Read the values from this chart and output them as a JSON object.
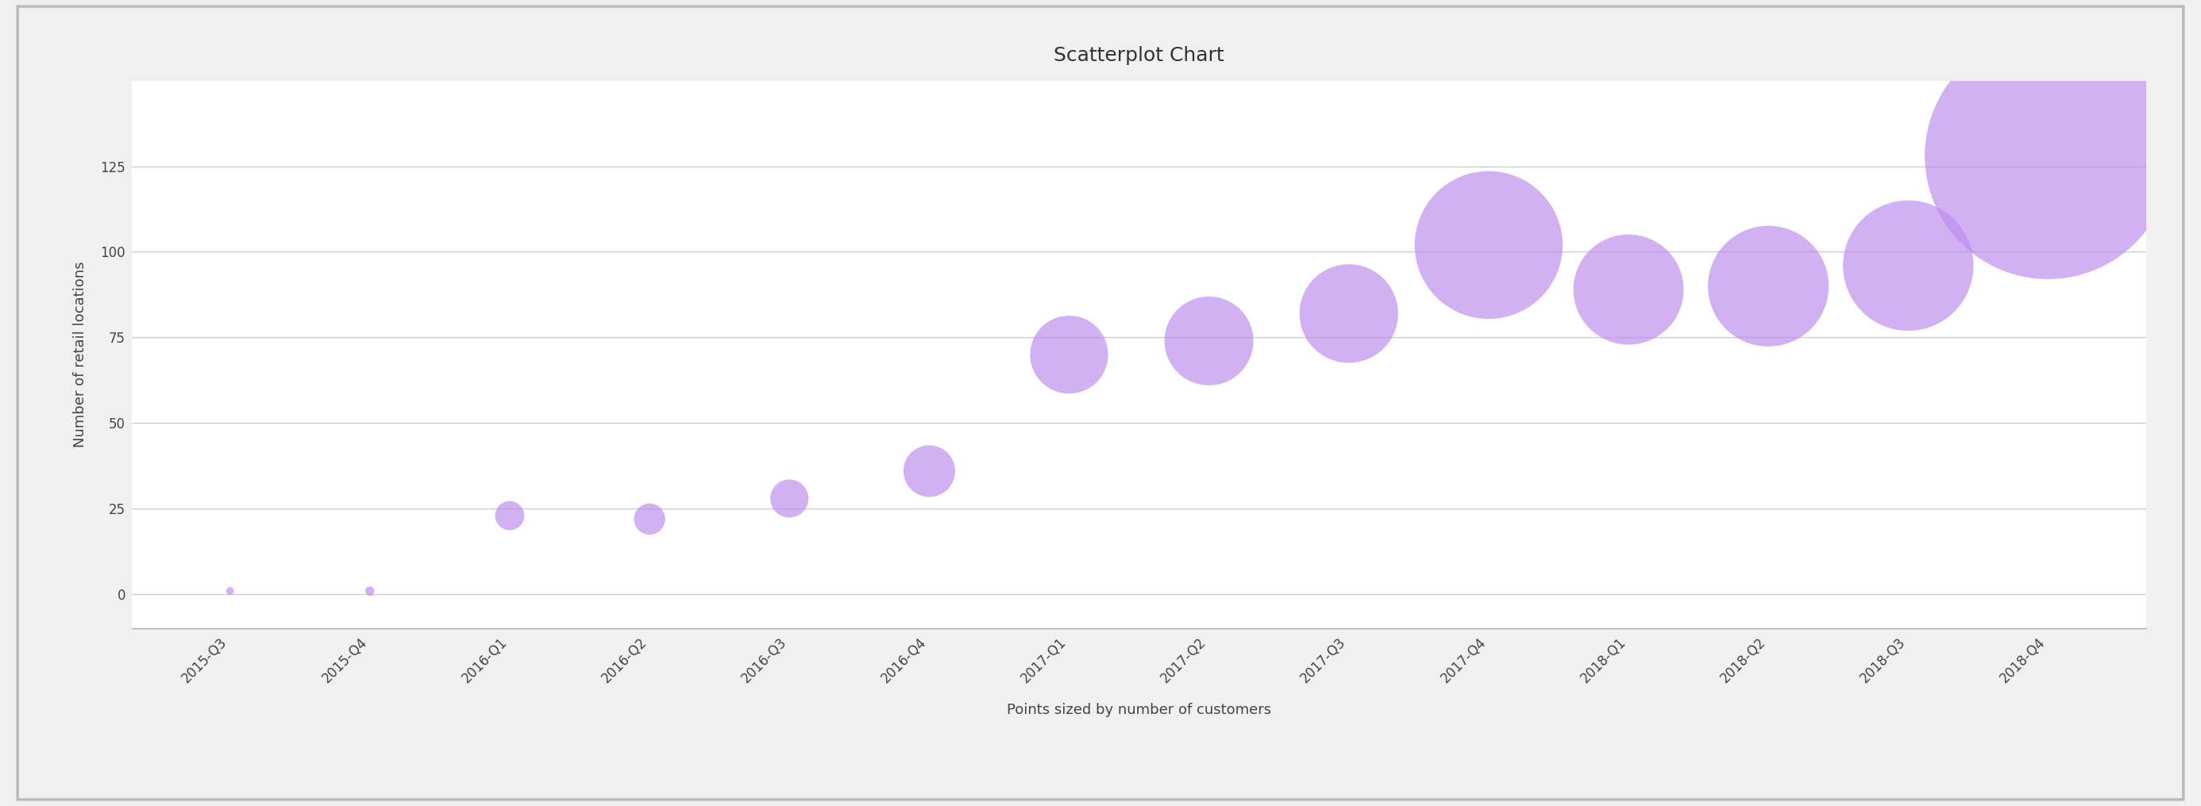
{
  "title": "Scatterplot Chart",
  "xlabel": "Points sized by number of customers",
  "ylabel": "Number of retail locations",
  "background_color": "#f0f0f0",
  "plot_background_color": "#ffffff",
  "border_color": "#bbbbbb",
  "grid_color": "#cccccc",
  "point_color": "#bb88ee",
  "point_alpha": 0.65,
  "categories": [
    "2015-Q3",
    "2015-Q4",
    "2016-Q1",
    "2016-Q2",
    "2016-Q3",
    "2016-Q4",
    "2017-Q1",
    "2017-Q2",
    "2017-Q3",
    "2017-Q4",
    "2018-Q1",
    "2018-Q2",
    "2018-Q3",
    "2018-Q4"
  ],
  "y_values": [
    1,
    1,
    23,
    22,
    28,
    36,
    70,
    74,
    82,
    102,
    89,
    90,
    96,
    128
  ],
  "sizes": [
    50,
    70,
    700,
    800,
    1200,
    2200,
    5000,
    6500,
    8000,
    18000,
    10000,
    12000,
    14000,
    50000
  ],
  "ylim": [
    -10,
    150
  ],
  "yticks": [
    0,
    25,
    50,
    75,
    100,
    125
  ],
  "title_fontsize": 18,
  "axis_label_fontsize": 13,
  "tick_fontsize": 12
}
